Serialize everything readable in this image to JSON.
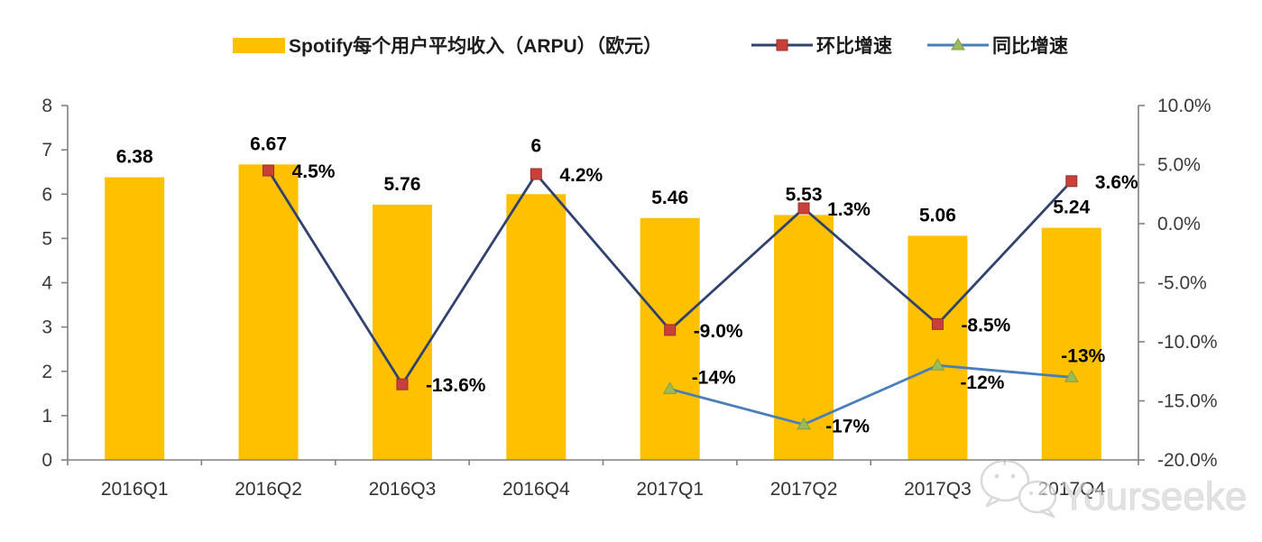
{
  "legend": {
    "items": [
      {
        "label": "Spotify每个用户平均收入（ARPU）（欧元）"
      },
      {
        "label": "环比增速"
      },
      {
        "label": "同比增速"
      }
    ]
  },
  "watermark": {
    "text": "Yourseeker"
  },
  "colors": {
    "bar": "#FFC000",
    "qoq_line": "#31426E",
    "qoq_marker": "#C9403B",
    "qoq_marker_border": "#96302C",
    "yoy_line": "#4A7EBB",
    "yoy_marker": "#9BBB59",
    "yoy_marker_border": "#7E9E45",
    "axis_line": "#808080",
    "tick_text": "#3A3A3A",
    "data_label": "#000000"
  },
  "chart_data": {
    "type": "bar+line combo, dual axis",
    "title": "Spotify每个用户平均收入（ARPU）（欧元）",
    "categories": [
      "2016Q1",
      "2016Q2",
      "2016Q3",
      "2016Q4",
      "2017Q1",
      "2017Q2",
      "2017Q3",
      "2017Q4"
    ],
    "series": [
      {
        "name": "Spotify每个用户平均收入（ARPU）（欧元）",
        "type": "bar",
        "axis": "left",
        "values": [
          6.38,
          6.67,
          5.76,
          6,
          5.46,
          5.53,
          5.06,
          5.24
        ],
        "labels": [
          "6.38",
          "6.67",
          "5.76",
          "6",
          "5.46",
          "5.53",
          "5.06",
          "5.24"
        ]
      },
      {
        "name": "环比增速",
        "type": "line",
        "axis": "right",
        "marker": "square",
        "values": [
          null,
          4.5,
          -13.6,
          4.2,
          -9.0,
          1.3,
          -8.5,
          3.6
        ],
        "labels": [
          "",
          "4.5%",
          "-13.6%",
          "4.2%",
          "-9.0%",
          "1.3%",
          "-8.5%",
          "3.6%"
        ]
      },
      {
        "name": "同比增速",
        "type": "line",
        "axis": "right",
        "marker": "triangle",
        "values": [
          null,
          null,
          null,
          null,
          -14,
          -17,
          -12,
          -13
        ],
        "labels": [
          "",
          "",
          "",
          "",
          "-14%",
          "-17%",
          "-12%",
          "-13%"
        ]
      }
    ],
    "left_axis": {
      "min": 0,
      "max": 8,
      "tick_labels": [
        "0",
        "1",
        "2",
        "3",
        "4",
        "5",
        "6",
        "7",
        "8"
      ]
    },
    "right_axis": {
      "min": -20,
      "max": 10,
      "tick_values": [
        10,
        5,
        0,
        -5,
        -10,
        -15,
        -20
      ],
      "tick_labels": [
        "10.0%",
        "5.0%",
        "0.0%",
        "-5.0%",
        "-10.0%",
        "-15.0%",
        "-20.0%"
      ]
    },
    "grid": false,
    "legend_position": "top"
  }
}
